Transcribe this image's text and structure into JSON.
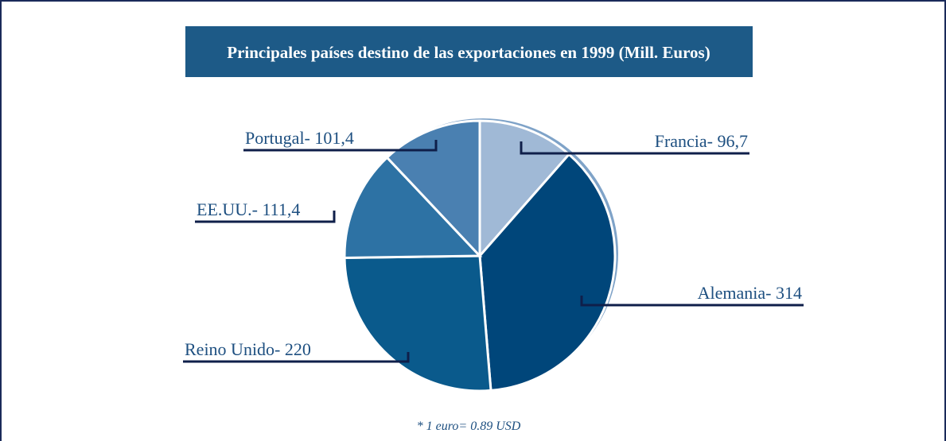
{
  "chart_data": {
    "type": "pie",
    "title": "Principales países destino de las exportaciones en 1999 (Mill. Euros)",
    "values": [
      96.7,
      314,
      220,
      111.4,
      101.4
    ],
    "value_labels": [
      "Francia- 96,7",
      "Alemania- 314",
      "Reino Unido- 220",
      "EE.UU.- 111,4",
      "Portugal- 101,4"
    ],
    "colors": [
      "#a0b9d6",
      "#00467a",
      "#0a5a8c",
      "#2d72a4",
      "#4a80b1"
    ],
    "note": "* 1 euro= 0.89 USD"
  }
}
